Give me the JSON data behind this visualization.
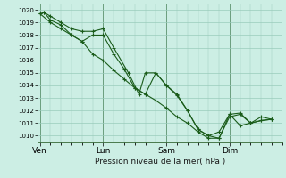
{
  "xlabel": "Pression niveau de la mer( hPa )",
  "background_color": "#cceee4",
  "grid_color": "#99ccbb",
  "line_color": "#1a5c1a",
  "vline_color": "#336633",
  "ylim": [
    1009.5,
    1020.5
  ],
  "yticks": [
    1010,
    1011,
    1012,
    1013,
    1014,
    1015,
    1016,
    1017,
    1018,
    1019,
    1020
  ],
  "day_labels": [
    "Ven",
    "Lun",
    "Sam",
    "Dim"
  ],
  "day_positions": [
    0.0,
    3.0,
    6.0,
    9.0
  ],
  "xlim": [
    -0.1,
    11.5
  ],
  "series1_x": [
    0.0,
    0.2,
    0.5,
    1.0,
    1.5,
    2.0,
    2.5,
    3.0,
    3.5,
    4.2,
    4.7,
    5.0,
    5.5,
    6.0,
    6.5,
    7.0,
    7.5,
    8.0,
    8.5,
    9.0,
    9.5,
    10.0,
    10.5,
    11.0
  ],
  "series1_y": [
    1019.7,
    1019.8,
    1019.5,
    1019.0,
    1018.5,
    1018.3,
    1018.3,
    1018.5,
    1017.0,
    1015.0,
    1013.3,
    1015.0,
    1015.0,
    1014.0,
    1013.3,
    1012.0,
    1010.5,
    1010.0,
    1009.8,
    1011.7,
    1011.8,
    1011.0,
    1011.2,
    1011.3
  ],
  "series2_x": [
    0.2,
    0.5,
    1.0,
    1.5,
    2.0,
    2.5,
    3.0,
    3.5,
    4.0,
    4.5,
    5.0,
    5.5,
    6.0,
    6.5,
    7.0,
    7.5,
    8.0,
    8.5,
    9.0,
    9.5,
    10.0,
    10.5,
    11.0
  ],
  "series2_y": [
    1019.8,
    1019.2,
    1018.8,
    1018.0,
    1017.5,
    1018.0,
    1018.0,
    1016.5,
    1015.3,
    1013.8,
    1013.3,
    1015.0,
    1014.0,
    1013.2,
    1012.0,
    1010.5,
    1010.0,
    1010.3,
    1011.7,
    1010.8,
    1011.0,
    1011.5,
    1011.3
  ],
  "series3_x": [
    0.0,
    0.5,
    1.0,
    1.5,
    2.0,
    2.5,
    3.0,
    3.5,
    4.0,
    4.5,
    5.0,
    5.5,
    6.0,
    6.5,
    7.0,
    7.5,
    8.0,
    8.5,
    9.0,
    9.5,
    10.0,
    10.5,
    11.0
  ],
  "series3_y": [
    1019.7,
    1019.0,
    1018.5,
    1018.0,
    1017.5,
    1016.5,
    1016.0,
    1015.2,
    1014.5,
    1013.8,
    1013.3,
    1012.8,
    1012.2,
    1011.5,
    1011.0,
    1010.3,
    1009.8,
    1009.8,
    1011.5,
    1011.7,
    1011.0,
    1011.2,
    1011.3
  ]
}
